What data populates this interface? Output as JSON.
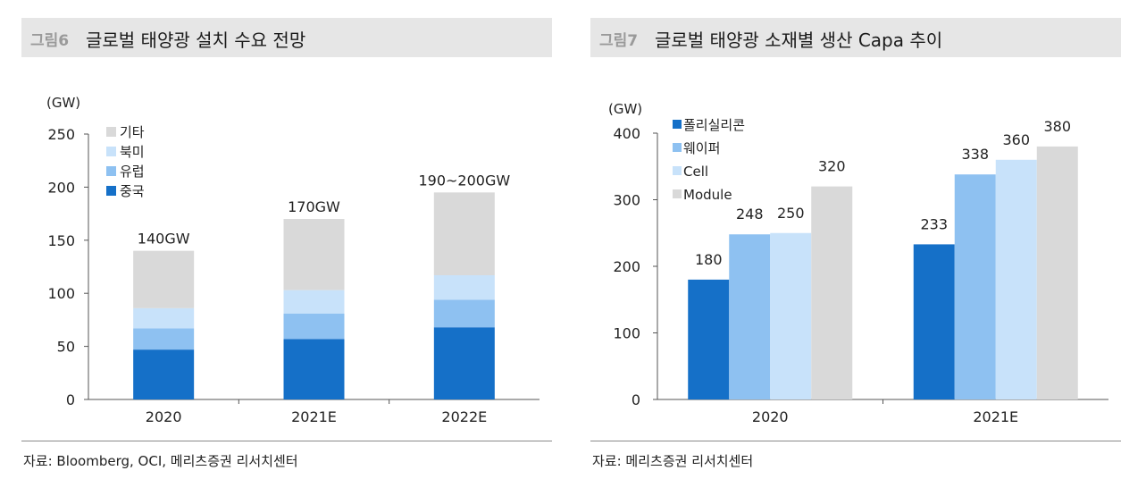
{
  "figures": [
    {
      "fig_num": "그림6",
      "title": "글로벌 태양광 설치 수요 전망",
      "source": "자료: Bloomberg, OCI, 메리츠증권 리서치센터"
    },
    {
      "fig_num": "그림7",
      "title": "글로벌 태양광 소재별 생산 Capa 추이",
      "source": "자료: 메리츠증권 리서치센터"
    }
  ],
  "chart_data": [
    {
      "type": "bar",
      "stacked": true,
      "unit": "(GW)",
      "categories": [
        "2020",
        "2021E",
        "2022E"
      ],
      "totals": [
        "140GW",
        "170GW",
        "190~200GW"
      ],
      "series": [
        {
          "name": "중국",
          "color": "#1570c8",
          "values": [
            47,
            57,
            68
          ]
        },
        {
          "name": "유럽",
          "color": "#8ec1f1",
          "values": [
            20,
            24,
            26
          ]
        },
        {
          "name": "북미",
          "color": "#c8e2fa",
          "values": [
            19,
            22,
            23
          ]
        },
        {
          "name": "기타",
          "color": "#d9d9d9",
          "values": [
            54,
            67,
            78
          ]
        }
      ],
      "legend_order": [
        "기타",
        "북미",
        "유럽",
        "중국"
      ],
      "yticks": [
        "0",
        "50",
        "100",
        "150",
        "200",
        "250"
      ],
      "ylim": [
        0,
        250
      ],
      "legend_position": "top-left"
    },
    {
      "type": "bar",
      "stacked": false,
      "unit": "(GW)",
      "categories": [
        "2020",
        "2021E"
      ],
      "series": [
        {
          "name": "폴리실리콘",
          "color": "#1570c8",
          "values": [
            180,
            233
          ]
        },
        {
          "name": "웨이퍼",
          "color": "#8ec1f1",
          "values": [
            248,
            338
          ]
        },
        {
          "name": "Cell",
          "color": "#c8e2fa",
          "values": [
            250,
            360
          ]
        },
        {
          "name": "Module",
          "color": "#d9d9d9",
          "values": [
            320,
            380
          ]
        }
      ],
      "yticks": [
        "0",
        "100",
        "200",
        "300",
        "400"
      ],
      "ylim": [
        0,
        400
      ],
      "legend_position": "top-left"
    }
  ]
}
